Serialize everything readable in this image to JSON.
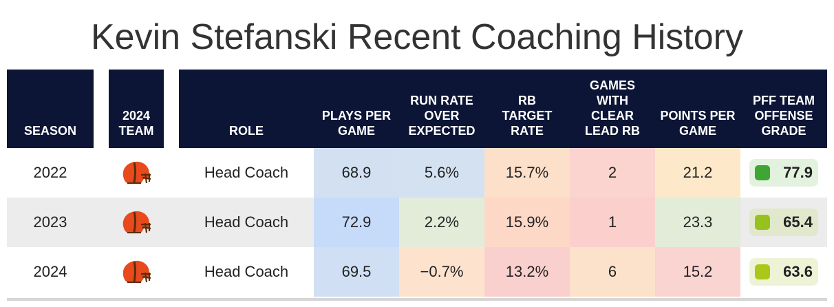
{
  "title": "Kevin Stefanski Recent Coaching History",
  "headers": {
    "season": "SEASON",
    "team": "2024 TEAM",
    "role": "ROLE",
    "plays": "PLAYS PER GAME",
    "run_rate": "RUN RATE OVER EXPECTED",
    "rb_target": "RB TARGET RATE",
    "games_rb": "GAMES WITH CLEAR LEAD RB",
    "points": "POINTS PER GAME",
    "grade": "PFF TEAM OFFENSE GRADE"
  },
  "colors": {
    "header_bg": "#0c1536",
    "grade_high": "#3fa535",
    "grade_mid": "#97c11f",
    "grade_low": "#a9c81a"
  },
  "rows": [
    {
      "season": "2022",
      "team_icon": "browns-helmet-icon",
      "role": "Head Coach",
      "plays": "68.9",
      "run_rate": "5.6%",
      "rb_target": "15.7%",
      "games_rb": "2",
      "points": "21.2",
      "grade": "77.9"
    },
    {
      "season": "2023",
      "team_icon": "browns-helmet-icon",
      "role": "Head Coach",
      "plays": "72.9",
      "run_rate": "2.2%",
      "rb_target": "15.9%",
      "games_rb": "1",
      "points": "23.3",
      "grade": "65.4"
    },
    {
      "season": "2024",
      "team_icon": "browns-helmet-icon",
      "role": "Head Coach",
      "plays": "69.5",
      "run_rate": "−0.7%",
      "rb_target": "13.2%",
      "games_rb": "6",
      "points": "15.2",
      "grade": "63.6"
    }
  ]
}
